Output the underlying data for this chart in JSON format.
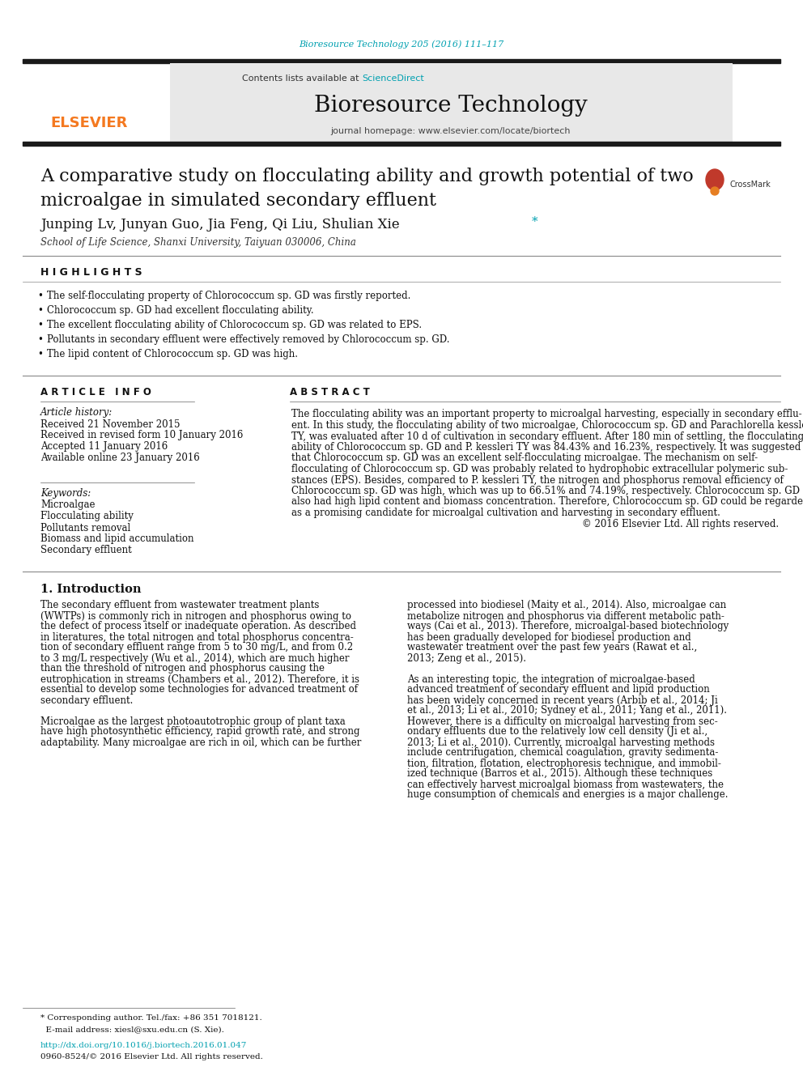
{
  "fig_width": 9.92,
  "fig_height": 13.23,
  "bg_color": "#ffffff",
  "journal_ref": "Bioresource Technology 205 (2016) 111–117",
  "journal_ref_color": "#00a0b0",
  "header_bg": "#e8e8e8",
  "header_title": "Bioresource Technology",
  "contents_text": "Contents lists available at ",
  "sciencedirect_text": "ScienceDirect",
  "sciencedirect_color": "#00a0b0",
  "journal_homepage": "journal homepage: www.elsevier.com/locate/biortech",
  "elsevier_color": "#f47920",
  "highlights_title": "H I G H L I G H T S",
  "highlights": [
    "The self-flocculating property of Chlorococcum sp. GD was firstly reported.",
    "Chlorococcum sp. GD had excellent flocculating ability.",
    "The excellent flocculating ability of Chlorococcum sp. GD was related to EPS.",
    "Pollutants in secondary effluent were effectively removed by Chlorococcum sp. GD.",
    "The lipid content of Chlorococcum sp. GD was high."
  ],
  "article_info_title": "A R T I C L E   I N F O",
  "article_history_label": "Article history:",
  "article_history": [
    "Received 21 November 2015",
    "Received in revised form 10 January 2016",
    "Accepted 11 January 2016",
    "Available online 23 January 2016"
  ],
  "keywords_label": "Keywords:",
  "keywords": [
    "Microalgae",
    "Flocculating ability",
    "Pollutants removal",
    "Biomass and lipid accumulation",
    "Secondary effluent"
  ],
  "abstract_title": "A B S T R A C T",
  "abstract_lines": [
    "The flocculating ability was an important property to microalgal harvesting, especially in secondary efflu-",
    "ent. In this study, the flocculating ability of two microalgae, Chlorococcum sp. GD and Parachlorella kessleri",
    "TY, was evaluated after 10 d of cultivation in secondary effluent. After 180 min of settling, the flocculating",
    "ability of Chlorococcum sp. GD and P. kessleri TY was 84.43% and 16.23%, respectively. It was suggested",
    "that Chlorococcum sp. GD was an excellent self-flocculating microalgae. The mechanism on self-",
    "flocculating of Chlorococcum sp. GD was probably related to hydrophobic extracellular polymeric sub-",
    "stances (EPS). Besides, compared to P. kessleri TY, the nitrogen and phosphorus removal efficiency of",
    "Chlorococcum sp. GD was high, which was up to 66.51% and 74.19%, respectively. Chlorococcum sp. GD",
    "also had high lipid content and biomass concentration. Therefore, Chlorococcum sp. GD could be regarded",
    "as a promising candidate for microalgal cultivation and harvesting in secondary effluent.",
    "© 2016 Elsevier Ltd. All rights reserved."
  ],
  "intro_left_lines": [
    "The secondary effluent from wastewater treatment plants",
    "(WWTPs) is commonly rich in nitrogen and phosphorus owing to",
    "the defect of process itself or inadequate operation. As described",
    "in literatures, the total nitrogen and total phosphorus concentra-",
    "tion of secondary effluent range from 5 to 30 mg/L, and from 0.2",
    "to 3 mg/L respectively (Wu et al., 2014), which are much higher",
    "than the threshold of nitrogen and phosphorus causing the",
    "eutrophication in streams (Chambers et al., 2012). Therefore, it is",
    "essential to develop some technologies for advanced treatment of",
    "secondary effluent.",
    "",
    "Microalgae as the largest photoautotrophic group of plant taxa",
    "have high photosynthetic efficiency, rapid growth rate, and strong",
    "adaptability. Many microalgae are rich in oil, which can be further"
  ],
  "intro_right_lines": [
    "processed into biodiesel (Maity et al., 2014). Also, microalgae can",
    "metabolize nitrogen and phosphorus via different metabolic path-",
    "ways (Cai et al., 2013). Therefore, microalgal-based biotechnology",
    "has been gradually developed for biodiesel production and",
    "wastewater treatment over the past few years (Rawat et al.,",
    "2013; Zeng et al., 2015).",
    "",
    "As an interesting topic, the integration of microalgae-based",
    "advanced treatment of secondary effluent and lipid production",
    "has been widely concerned in recent years (Arbib et al., 2014; Ji",
    "et al., 2013; Li et al., 2010; Sydney et al., 2011; Yang et al., 2011).",
    "However, there is a difficulty on microalgal harvesting from sec-",
    "ondary effluents due to the relatively low cell density (Ji et al.,",
    "2013; Li et al., 2010). Currently, microalgal harvesting methods",
    "include centrifugation, chemical coagulation, gravity sedimenta-",
    "tion, filtration, flotation, electrophoresis technique, and immobil-",
    "ized technique (Barros et al., 2015). Although these techniques",
    "can effectively harvest microalgal biomass from wastewaters, the",
    "huge consumption of chemicals and energies is a major challenge."
  ],
  "link_color": "#00a0b0",
  "thick_bar_color": "#1a1a1a",
  "thin_line_color": "#555555"
}
